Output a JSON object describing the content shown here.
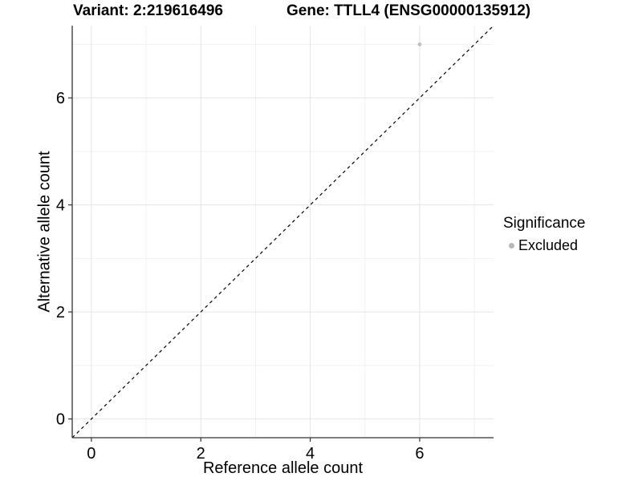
{
  "chart_data": {
    "type": "scatter",
    "title_left": "Variant: 2:219616496",
    "title_right": "Gene: TTLL4 (ENSG00000135912)",
    "xlabel": "Reference allele count",
    "ylabel": "Alternative allele count",
    "xlim": [
      -0.35,
      7.35
    ],
    "ylim": [
      -0.35,
      7.35
    ],
    "x_ticks": [
      0,
      2,
      4,
      6
    ],
    "y_ticks": [
      0,
      2,
      4,
      6
    ],
    "x_minor_ticks": [
      1,
      3,
      5,
      7
    ],
    "y_minor_ticks": [
      1,
      3,
      5,
      7
    ],
    "grid": "on",
    "identity_line": {
      "equation": "y = x",
      "style": "dashed",
      "color": "#000000"
    },
    "series": [
      {
        "name": "Excluded",
        "color": "#bebebe",
        "points": [
          {
            "x": 6,
            "y": 7
          }
        ]
      }
    ],
    "legend": {
      "title": "Significance",
      "position": "right",
      "entries": [
        {
          "label": "Excluded",
          "color": "#b8b8b8"
        }
      ]
    },
    "style": {
      "axis_line_color": "#333333",
      "tick_color": "#333333",
      "grid_major_color": "#e4e4e4",
      "grid_minor_color": "#f1f1f1",
      "text_color": "#000000",
      "background": "#ffffff",
      "tick_label_size": 20
    }
  }
}
